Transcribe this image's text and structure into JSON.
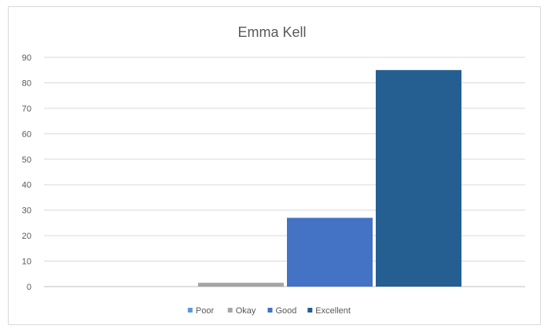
{
  "chart_data": {
    "type": "bar",
    "title": "Emma Kell",
    "xlabel": "",
    "ylabel": "",
    "ylim": [
      0,
      90
    ],
    "yticks": [
      0,
      10,
      20,
      30,
      40,
      50,
      60,
      70,
      80,
      90
    ],
    "grid": true,
    "legend": "bottom",
    "series": [
      {
        "name": "Poor",
        "value": 0,
        "color": "#5b9bd5"
      },
      {
        "name": "Okay",
        "value": 1.5,
        "color": "#a5a5a5"
      },
      {
        "name": "Good",
        "value": 27,
        "color": "#4472c4"
      },
      {
        "name": "Excellent",
        "value": 85,
        "color": "#255e91"
      }
    ]
  }
}
